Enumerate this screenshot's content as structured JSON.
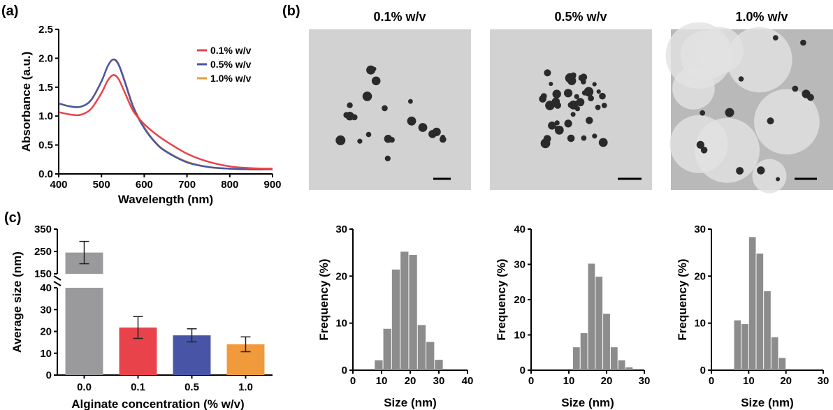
{
  "panels": {
    "a_label": "(a)",
    "b_label": "(b)",
    "c_label": "(c)"
  },
  "tem": {
    "titles": [
      "0.1% w/v",
      "0.5% w/v",
      "1.0% w/v"
    ],
    "colors": {
      "background": "#d2d2d2",
      "particle": "#2a2a2a",
      "scalebar": "#000000"
    }
  },
  "chart_data": [
    {
      "id": "a",
      "type": "line",
      "xlabel": "Wavelength (nm)",
      "ylabel": "Absorbance (a.u.)",
      "xlim": [
        400,
        900
      ],
      "ylim": [
        0.0,
        2.5
      ],
      "xticks": [
        400,
        500,
        600,
        700,
        800,
        900
      ],
      "yticks": [
        0.0,
        0.5,
        1.0,
        1.5,
        2.0,
        2.5
      ],
      "x": [
        400,
        425,
        450,
        475,
        500,
        515,
        528,
        540,
        555,
        575,
        600,
        625,
        650,
        700,
        750,
        800,
        850,
        900
      ],
      "series": [
        {
          "name": "0.1% w/v",
          "color": "#e8434a",
          "values": [
            1.07,
            1.03,
            1.02,
            1.12,
            1.4,
            1.62,
            1.71,
            1.64,
            1.4,
            1.08,
            0.86,
            0.7,
            0.57,
            0.35,
            0.21,
            0.13,
            0.1,
            0.09
          ]
        },
        {
          "name": "0.5% w/v",
          "color": "#4855a6",
          "values": [
            1.22,
            1.17,
            1.16,
            1.27,
            1.6,
            1.87,
            1.98,
            1.89,
            1.58,
            1.14,
            0.79,
            0.55,
            0.39,
            0.2,
            0.12,
            0.09,
            0.08,
            0.08
          ]
        },
        {
          "name": "1.0% w/v",
          "color": "#f09a3c",
          "values": [
            1.22,
            1.17,
            1.16,
            1.27,
            1.6,
            1.87,
            1.98,
            1.9,
            1.6,
            1.16,
            0.81,
            0.56,
            0.4,
            0.21,
            0.12,
            0.09,
            0.08,
            0.08
          ]
        }
      ],
      "legend": "top-right"
    },
    {
      "id": "c",
      "type": "bar",
      "xlabel": "Alginate concentration (% w/v)",
      "ylabel": "Average size (nm)",
      "categories": [
        "0.0",
        "0.1",
        "0.5",
        "1.0"
      ],
      "values": [
        245,
        21.8,
        18.2,
        14.1
      ],
      "errors": [
        50,
        5.0,
        3.0,
        3.4
      ],
      "colors": [
        "#9a9a9c",
        "#e8434a",
        "#4855a6",
        "#f09a3c"
      ],
      "broken_axis": true,
      "ylim_lower": [
        0,
        40
      ],
      "ylim_upper": [
        150,
        350
      ],
      "yticks_lower": [
        0,
        10,
        20,
        30,
        40
      ],
      "yticks_upper": [
        150,
        250,
        350
      ]
    },
    {
      "id": "hist-0.1",
      "type": "bar",
      "xlabel": "Size (nm)",
      "ylabel": "Frequency (%)",
      "xlim": [
        0,
        40
      ],
      "ylim": [
        0,
        30
      ],
      "xticks": [
        0,
        10,
        20,
        30,
        40
      ],
      "yticks": [
        0,
        10,
        20,
        30
      ],
      "bin_width": 3,
      "bin_starts": [
        7.5,
        10.5,
        13.5,
        16.5,
        19.5,
        22.5,
        25.5,
        28.5,
        31.5
      ],
      "values": [
        2.1,
        8.8,
        21.4,
        25.2,
        24.5,
        9.6,
        6.0,
        2.2,
        0
      ],
      "color": "#8c8c8c"
    },
    {
      "id": "hist-0.5",
      "type": "bar",
      "xlabel": "Size (nm)",
      "ylabel": "Frequency (%)",
      "xlim": [
        0,
        30
      ],
      "ylim": [
        0,
        40
      ],
      "xticks": [
        0,
        10,
        20,
        30
      ],
      "yticks": [
        0,
        10,
        20,
        30,
        40
      ],
      "bin_width": 2,
      "bin_starts": [
        11,
        13,
        15,
        17,
        19,
        21,
        23,
        25
      ],
      "values": [
        6.5,
        10.5,
        30.2,
        26.5,
        16.0,
        6.5,
        2.8,
        0.8
      ],
      "color": "#8c8c8c"
    },
    {
      "id": "hist-1.0",
      "type": "bar",
      "xlabel": "Size (nm)",
      "ylabel": "Frequency (%)",
      "xlim": [
        0,
        30
      ],
      "ylim": [
        0,
        30
      ],
      "xticks": [
        0,
        10,
        20,
        30
      ],
      "yticks": [
        0,
        10,
        20,
        30
      ],
      "bin_width": 2,
      "bin_starts": [
        6,
        8,
        10,
        12,
        14,
        16,
        18,
        20
      ],
      "values": [
        10.6,
        9.8,
        28.3,
        24.8,
        16.8,
        7.0,
        2.6,
        0
      ],
      "color": "#8c8c8c"
    }
  ]
}
